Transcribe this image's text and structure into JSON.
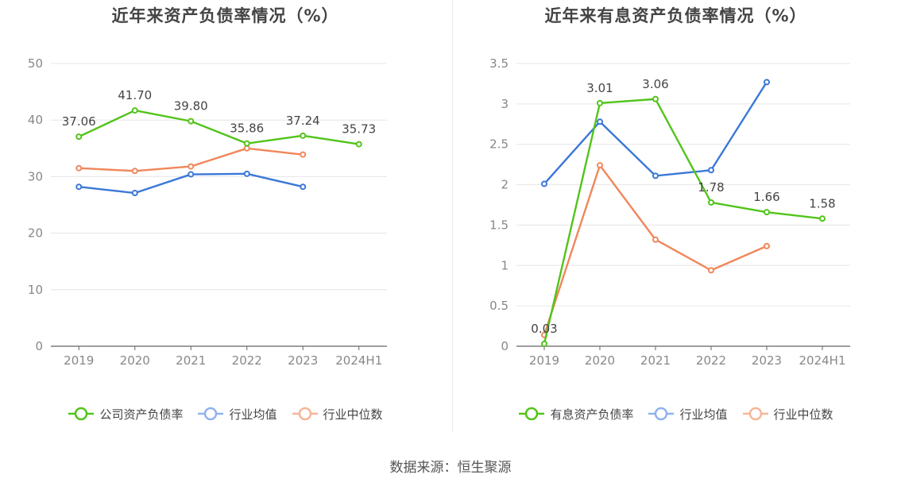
{
  "source_label": "数据来源：恒生聚源",
  "chart_data": [
    {
      "type": "line",
      "title": "近年来资产负债率情况（%）",
      "categories": [
        "2019",
        "2020",
        "2021",
        "2022",
        "2023",
        "2024H1"
      ],
      "ylim": [
        0,
        50
      ],
      "yticks": [
        "0",
        "10",
        "20",
        "30",
        "40",
        "50"
      ],
      "grid": true,
      "legend_position": "bottom",
      "series": [
        {
          "name": "公司资产负债率",
          "color": "#52c41a",
          "values": [
            37.06,
            41.7,
            39.8,
            35.86,
            37.24,
            35.73
          ],
          "labels": [
            "37.06",
            "41.70",
            "39.80",
            "35.86",
            "37.24",
            "35.73"
          ]
        },
        {
          "name": "行业均值",
          "color": "#3a78d8",
          "values": [
            28.2,
            27.1,
            30.4,
            30.5,
            28.2,
            null
          ]
        },
        {
          "name": "行业中位数",
          "color": "#f0875a",
          "values": [
            31.5,
            31.0,
            31.8,
            35.0,
            33.9,
            null
          ]
        }
      ]
    },
    {
      "type": "line",
      "title": "近年来有息资产负债率情况（%）",
      "categories": [
        "2019",
        "2020",
        "2021",
        "2022",
        "2023",
        "2024H1"
      ],
      "ylim": [
        0,
        3.5
      ],
      "yticks": [
        "0",
        "0.5",
        "1",
        "1.5",
        "2",
        "2.5",
        "3",
        "3.5"
      ],
      "grid": true,
      "legend_position": "bottom",
      "series": [
        {
          "name": "有息资产负债率",
          "color": "#52c41a",
          "values": [
            0.03,
            3.01,
            3.06,
            1.78,
            1.66,
            1.58
          ],
          "labels": [
            "0.03",
            "3.01",
            "3.06",
            "1.78",
            "1.66",
            "1.58"
          ]
        },
        {
          "name": "行业均值",
          "color": "#3a78d8",
          "values": [
            2.01,
            2.78,
            2.11,
            2.18,
            3.27,
            null
          ]
        },
        {
          "name": "行业中位数",
          "color": "#f0875a",
          "values": [
            0.14,
            2.24,
            1.32,
            0.94,
            1.24,
            null
          ]
        }
      ]
    }
  ]
}
